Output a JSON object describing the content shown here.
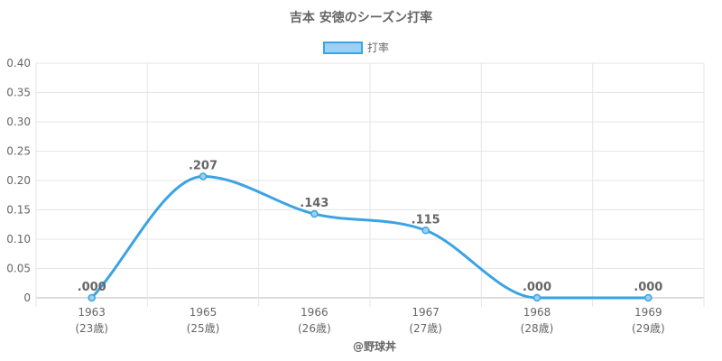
{
  "chart_data": {
    "type": "line",
    "title": "吉本 安徳のシーズン打率",
    "legend": {
      "label": "打率",
      "position": "top"
    },
    "categories": [
      "1963",
      "1965",
      "1966",
      "1967",
      "1968",
      "1969"
    ],
    "category_sublabels": [
      "(23歳)",
      "(25歳)",
      "(26歳)",
      "(27歳)",
      "(28歳)",
      "(29歳)"
    ],
    "series": [
      {
        "name": "打率",
        "values": [
          0.0,
          0.207,
          0.143,
          0.115,
          0.0,
          0.0
        ],
        "data_labels": [
          ".000",
          ".207",
          ".143",
          ".115",
          ".000",
          ".000"
        ],
        "color": "#3aa3e3",
        "fill": "#9ed0f2"
      }
    ],
    "ylim": [
      0,
      0.4
    ],
    "yticks": [
      "0",
      "0.05",
      "0.10",
      "0.15",
      "0.20",
      "0.25",
      "0.30",
      "0.35",
      "0.40"
    ],
    "grid": true
  },
  "credit": "@野球丼"
}
